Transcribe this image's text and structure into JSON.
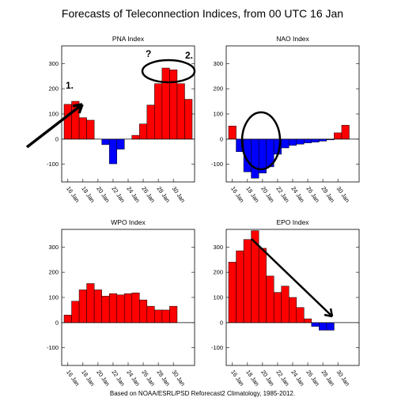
{
  "title": "Forecasts of Teleconnection Indices, from 00 UTC 16 Jan",
  "footer": "Based on NOAA/ESRL/PSD Reforecast2 Climatology, 1985-2012.",
  "colors": {
    "positive": "#ff0000",
    "negative": "#0000ff",
    "annotation": "#000000"
  },
  "chart_data": [
    {
      "type": "bar",
      "title": "PNA Index",
      "ylim": [
        -170,
        370
      ],
      "yticks": [
        -100,
        0,
        100,
        200,
        300
      ],
      "x_tick_labels": [
        "16 Jan",
        "18 Jan",
        "20 Jan",
        "22 Jan",
        "24 Jan",
        "26 Jan",
        "28 Jan",
        "30 Jan"
      ],
      "values": [
        138,
        150,
        85,
        75,
        0,
        -22,
        -98,
        -40,
        0,
        15,
        60,
        135,
        220,
        282,
        275,
        220,
        158
      ],
      "annotations": [
        "1.",
        "?",
        "2."
      ]
    },
    {
      "type": "bar",
      "title": "NAO Index",
      "ylim": [
        -170,
        370
      ],
      "yticks": [
        -100,
        0,
        100,
        200,
        300
      ],
      "x_tick_labels": [
        "16 Jan",
        "18 Jan",
        "20 Jan",
        "22 Jan",
        "24 Jan",
        "26 Jan",
        "28 Jan",
        "30 Jan"
      ],
      "values": [
        52,
        -50,
        -130,
        -155,
        -135,
        -110,
        -60,
        -35,
        -25,
        -20,
        -15,
        -12,
        -8,
        -3,
        25,
        55
      ],
      "annotations": []
    },
    {
      "type": "bar",
      "title": "WPO Index",
      "ylim": [
        -170,
        370
      ],
      "yticks": [
        -100,
        0,
        100,
        200,
        300
      ],
      "x_tick_labels": [
        "16 Jan",
        "18 Jan",
        "20 Jan",
        "22 Jan",
        "24 Jan",
        "26 Jan",
        "28 Jan",
        "30 Jan"
      ],
      "values": [
        30,
        85,
        130,
        155,
        130,
        105,
        115,
        110,
        115,
        118,
        90,
        65,
        50,
        50,
        65
      ],
      "annotations": []
    },
    {
      "type": "bar",
      "title": "EPO Index",
      "ylim": [
        -170,
        370
      ],
      "yticks": [
        -100,
        0,
        100,
        200,
        300
      ],
      "x_tick_labels": [
        "16 Jan",
        "18 Jan",
        "20 Jan",
        "22 Jan",
        "24 Jan",
        "26 Jan",
        "28 Jan",
        "30 Jan"
      ],
      "values": [
        240,
        285,
        330,
        365,
        295,
        185,
        120,
        145,
        100,
        60,
        15,
        -15,
        -30,
        -30,
        0,
        0
      ],
      "annotations": []
    }
  ]
}
